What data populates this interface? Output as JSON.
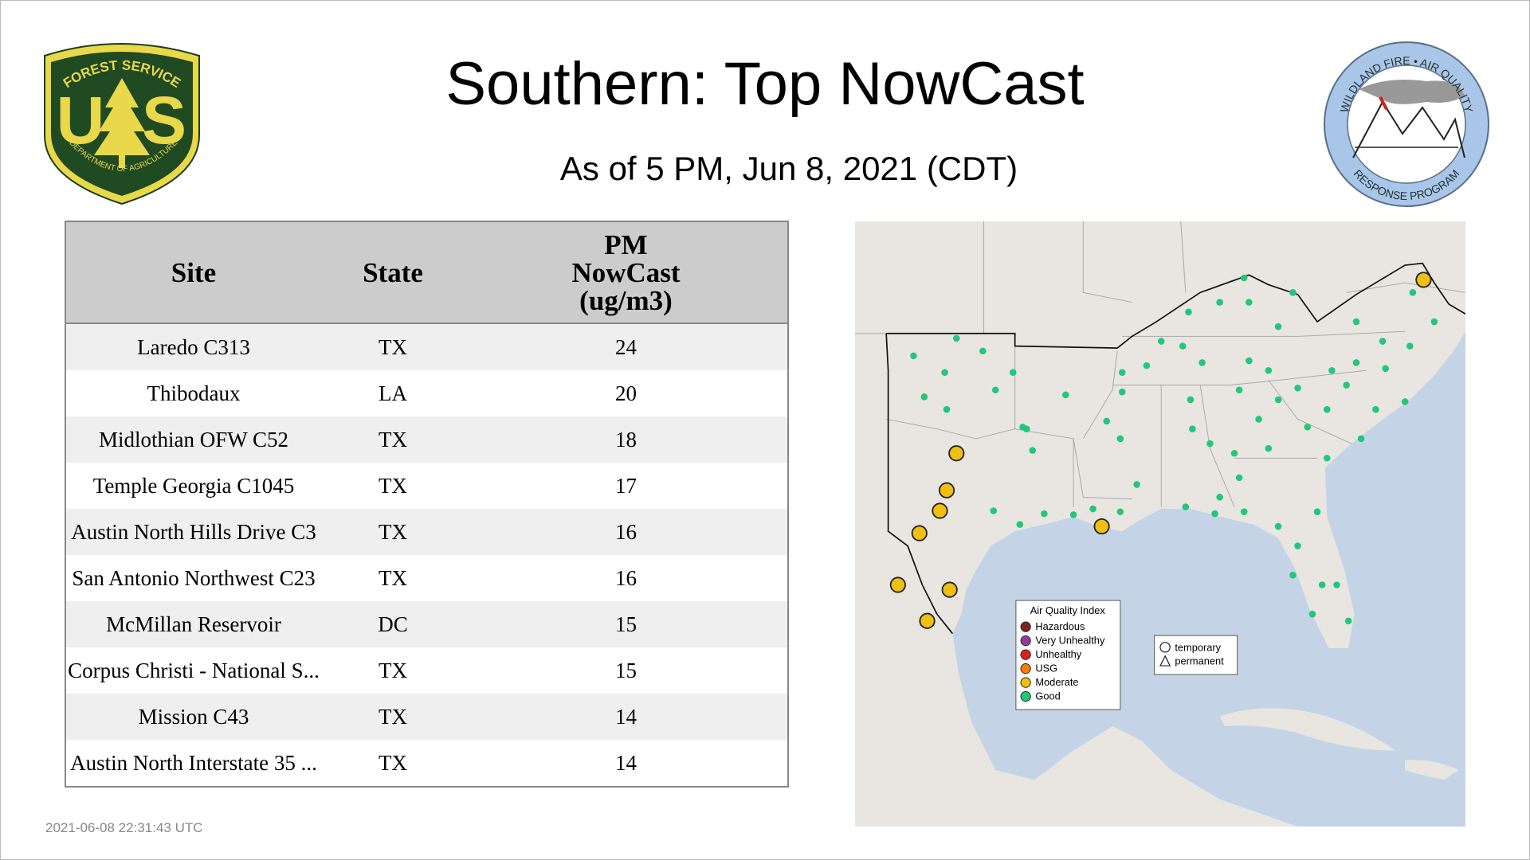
{
  "header": {
    "title": "Southern: Top NowCast",
    "subtitle": "As of  5 PM, Jun  8, 2021 (CDT)"
  },
  "logos": {
    "forest_service": {
      "arc": "FOREST SERVICE",
      "left": "U",
      "right": "S",
      "bottom": "DEPARTMENT OF AGRICULTURE"
    },
    "wfaq": {
      "top": "WILDLAND FIRE • AIR QUALITY",
      "bottom": "RESPONSE PROGRAM"
    }
  },
  "table": {
    "columns": [
      "Site",
      "State",
      [
        "PM",
        "NowCast",
        "(ug/m3)"
      ]
    ],
    "rows": [
      [
        "Laredo C313",
        "TX",
        24
      ],
      [
        "Thibodaux",
        "LA",
        20
      ],
      [
        "Midlothian OFW C52",
        "TX",
        18
      ],
      [
        "Temple Georgia C1045",
        "TX",
        17
      ],
      [
        "Austin North Hills Drive C3",
        "TX",
        16
      ],
      [
        "San Antonio Northwest C23",
        "TX",
        16
      ],
      [
        "McMillan Reservoir",
        "DC",
        15
      ],
      [
        "Corpus Christi - National S...",
        "TX",
        15
      ],
      [
        "Mission C43",
        "TX",
        14
      ],
      [
        "Austin North Interstate 35 ...",
        "TX",
        14
      ]
    ]
  },
  "map": {
    "legend": {
      "title": "Air Quality Index",
      "items": [
        {
          "label": "Hazardous",
          "color": "#7e2320"
        },
        {
          "label": "Very Unhealthy",
          "color": "#8f3f97"
        },
        {
          "label": "Unhealthy",
          "color": "#e02020"
        },
        {
          "label": "USG",
          "color": "#ff7e00"
        },
        {
          "label": "Moderate",
          "color": "#f0c010"
        },
        {
          "label": "Good",
          "color": "#22c878"
        }
      ]
    },
    "site_types": [
      "temporary",
      "permanent"
    ]
  },
  "timestamp": "2021-06-08 22:31:43 UTC"
}
